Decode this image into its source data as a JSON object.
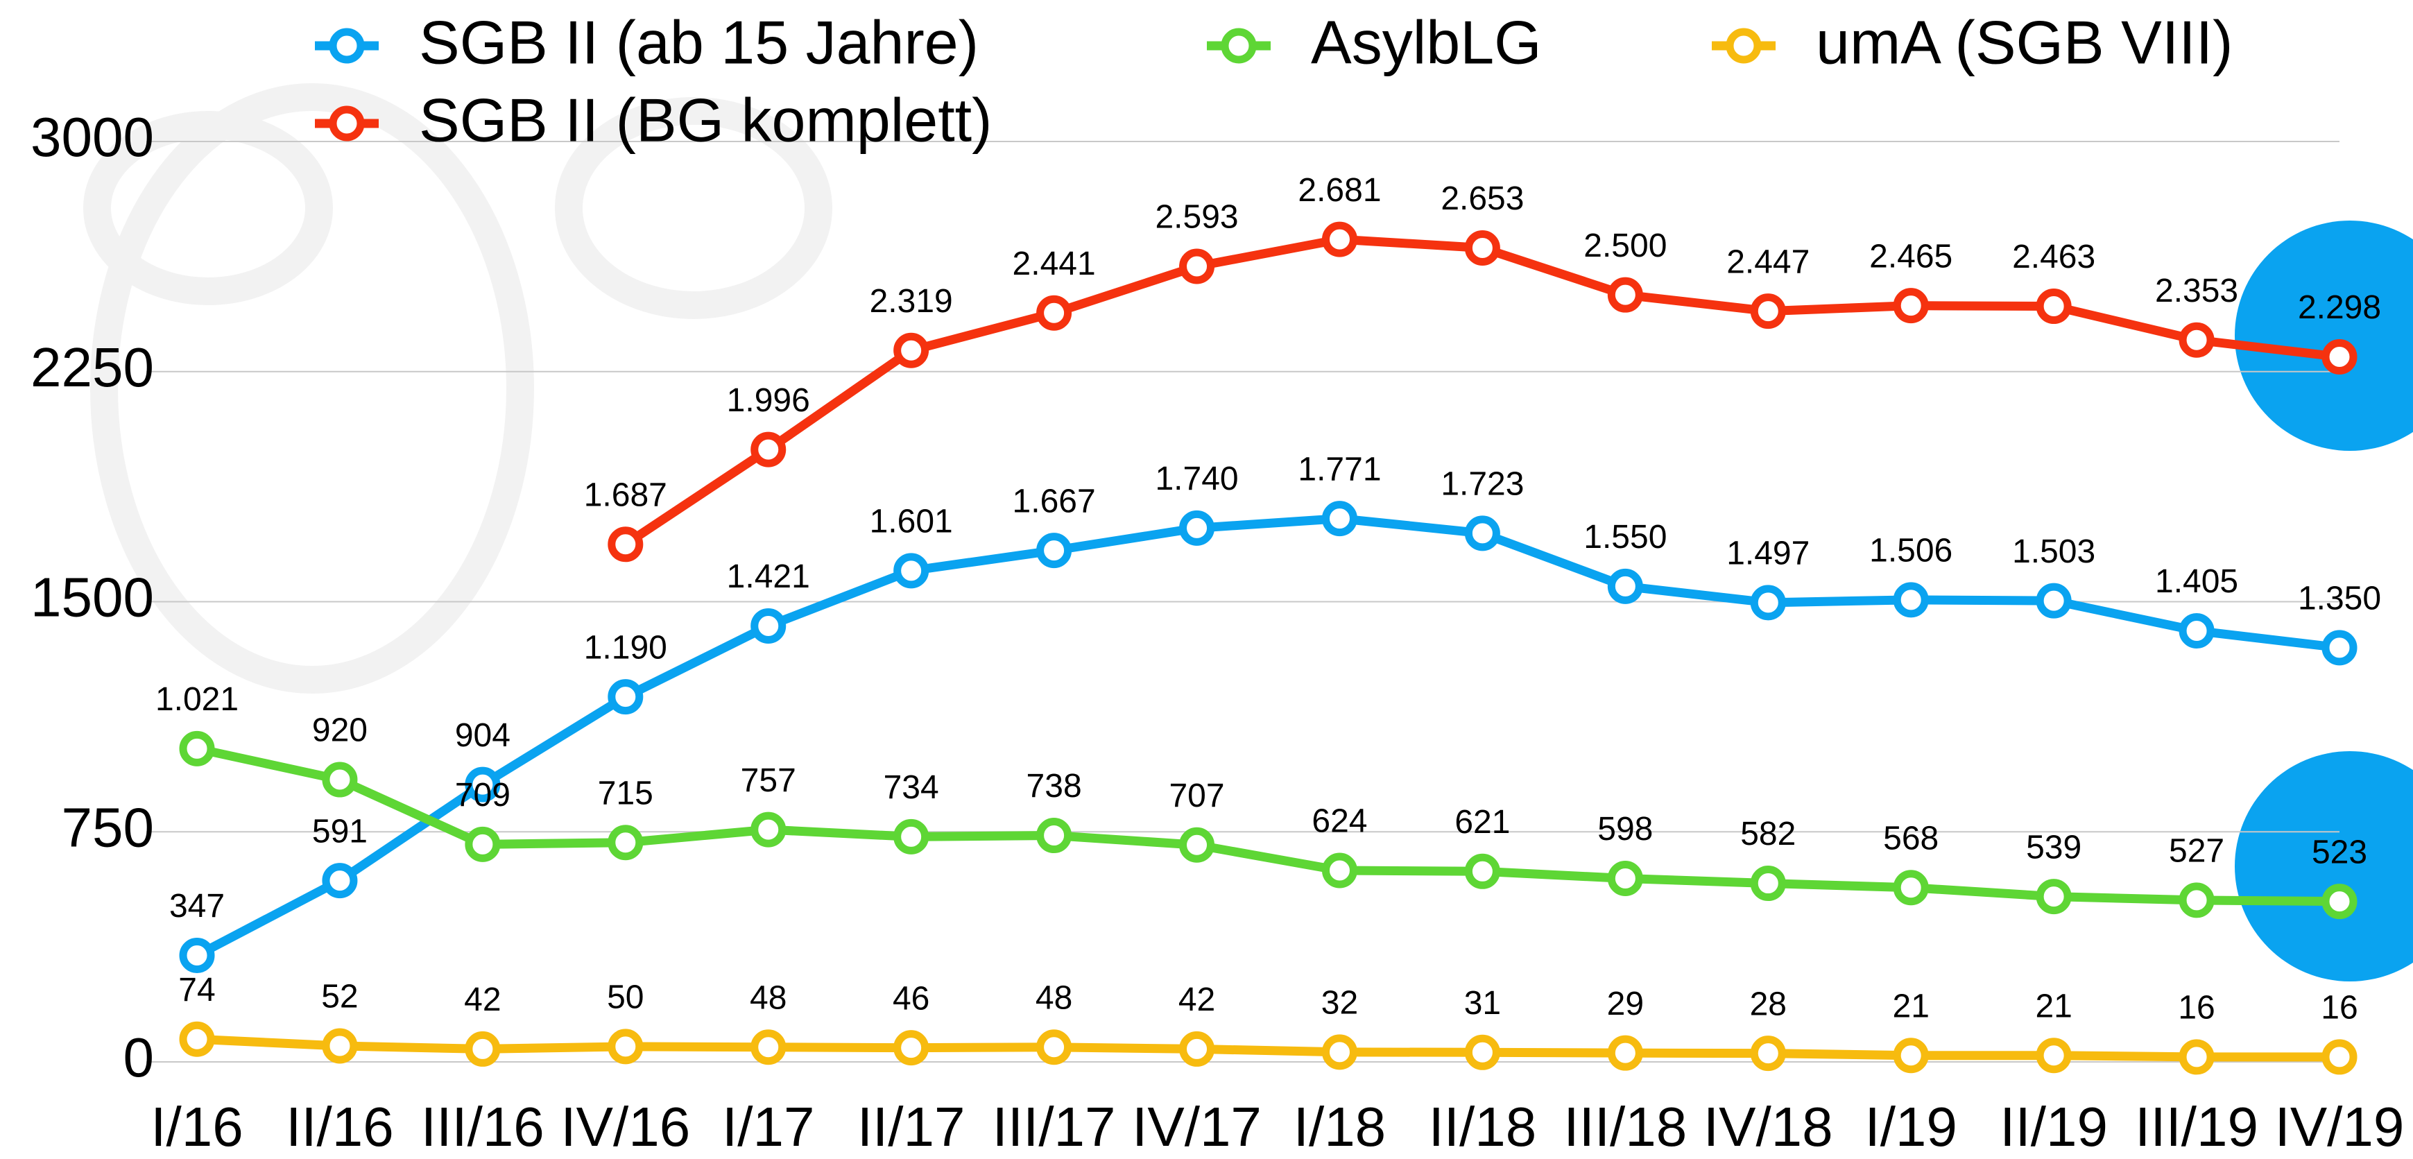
{
  "chart_data": {
    "type": "line",
    "categories": [
      "I/16",
      "II/16",
      "III/16",
      "IV/16",
      "I/17",
      "II/17",
      "III/17",
      "IV/17",
      "I/18",
      "II/18",
      "III/18",
      "IV/18",
      "I/19",
      "II/19",
      "III/19",
      "IV/19"
    ],
    "series": [
      {
        "name": "SGB II (ab 15 Jahre)",
        "color": "#0aa3f0",
        "values": [
          347,
          591,
          904,
          1190,
          1421,
          1601,
          1667,
          1740,
          1771,
          1723,
          1550,
          1497,
          1506,
          1503,
          1405,
          1350
        ],
        "value_labels": [
          "347",
          "591",
          "904",
          "1.190",
          "1.421",
          "1.601",
          "1.667",
          "1.740",
          "1.771",
          "1.723",
          "1.550",
          "1.497",
          "1.506",
          "1.503",
          "1.405",
          "1.350"
        ]
      },
      {
        "name": "SGB II (BG komplett)",
        "color": "#f5320f",
        "values": [
          null,
          null,
          null,
          1687,
          1996,
          2319,
          2441,
          2593,
          2681,
          2653,
          2500,
          2447,
          2465,
          2463,
          2353,
          2298
        ],
        "value_labels": [
          null,
          null,
          null,
          "1.687",
          "1.996",
          "2.319",
          "2.441",
          "2.593",
          "2.681",
          "2.653",
          "2.500",
          "2.447",
          "2.465",
          "2.463",
          "2.353",
          "2.298"
        ]
      },
      {
        "name": "AsylbLG",
        "color": "#5ed635",
        "values": [
          1021,
          920,
          709,
          715,
          757,
          734,
          738,
          707,
          624,
          621,
          598,
          582,
          568,
          539,
          527,
          523
        ],
        "value_labels": [
          "1.021",
          "920",
          "709",
          "715",
          "757",
          "734",
          "738",
          "707",
          "624",
          "621",
          "598",
          "582",
          "568",
          "539",
          "527",
          "523"
        ]
      },
      {
        "name": "umA (SGB VIII)",
        "color": "#f7bb0f",
        "values": [
          74,
          52,
          42,
          50,
          48,
          46,
          48,
          42,
          32,
          31,
          29,
          28,
          21,
          21,
          16,
          16
        ]
      }
    ],
    "ylim": [
      0,
      3000
    ],
    "yticks": [
      0,
      750,
      1500,
      2250,
      3000
    ],
    "grid": true
  }
}
